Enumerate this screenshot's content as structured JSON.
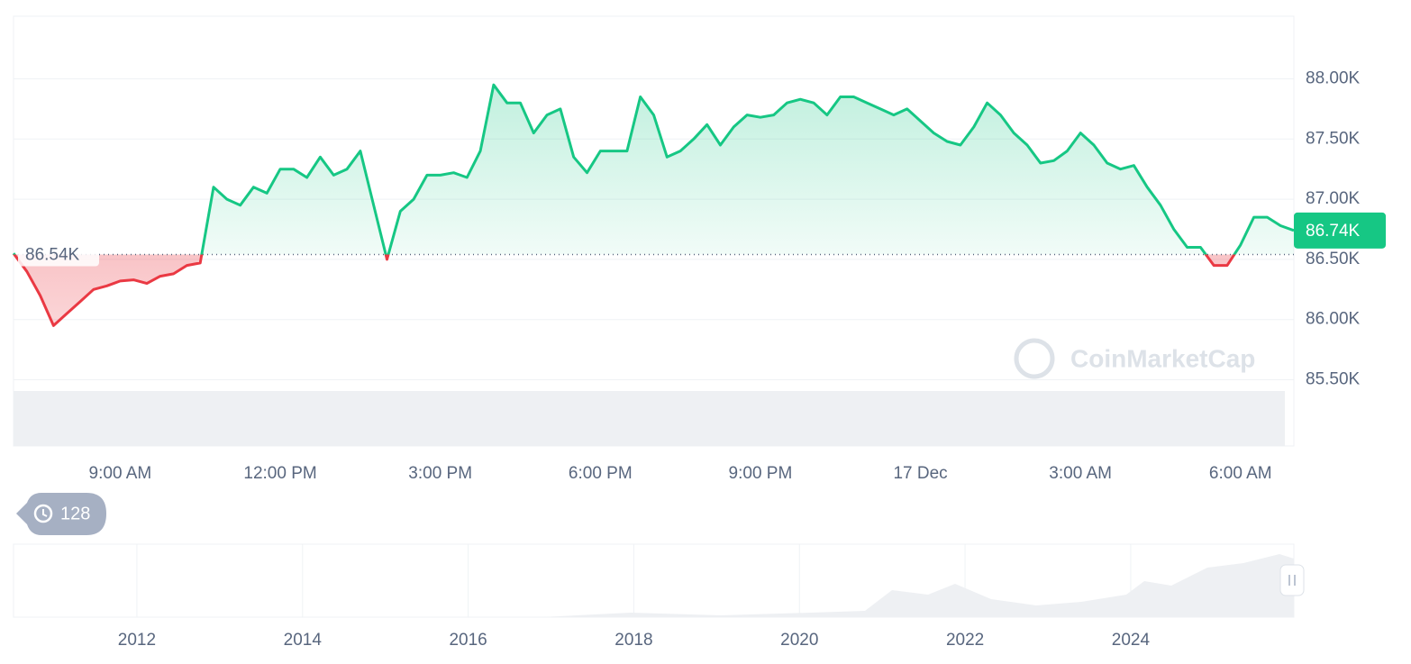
{
  "chart_data": {
    "type": "line",
    "categories": [
      null,
      null,
      null,
      null,
      null,
      null,
      null,
      null,
      "9:00 AM",
      null,
      null,
      null,
      null,
      null,
      null,
      null,
      null,
      null,
      null,
      null,
      "12:00 PM",
      null,
      null,
      null,
      null,
      null,
      null,
      null,
      null,
      null,
      null,
      null,
      "3:00 PM",
      null,
      null,
      null,
      null,
      null,
      null,
      null,
      null,
      null,
      null,
      null,
      "6:00 PM",
      null,
      null,
      null,
      null,
      null,
      null,
      null,
      null,
      null,
      null,
      null,
      "9:00 PM",
      null,
      null,
      null,
      null,
      null,
      null,
      null,
      null,
      null,
      null,
      null,
      "17 Dec",
      null,
      null,
      null,
      null,
      null,
      null,
      null,
      null,
      null,
      null,
      null,
      "3:00 AM",
      null,
      null,
      null,
      null,
      null,
      null,
      null,
      null,
      null,
      null,
      null,
      "6:00 AM",
      null,
      null,
      null,
      null
    ],
    "values": [
      86.55,
      86.4,
      86.2,
      85.95,
      86.05,
      86.15,
      86.25,
      86.28,
      86.32,
      86.33,
      86.3,
      86.36,
      86.38,
      86.45,
      86.47,
      87.1,
      87.0,
      86.95,
      87.1,
      87.05,
      87.25,
      87.25,
      87.18,
      87.35,
      87.2,
      87.25,
      87.4,
      86.95,
      86.5,
      86.9,
      87.0,
      87.2,
      87.2,
      87.22,
      87.18,
      87.4,
      87.95,
      87.8,
      87.8,
      87.55,
      87.7,
      87.75,
      87.35,
      87.22,
      87.4,
      87.4,
      87.4,
      87.85,
      87.7,
      87.35,
      87.4,
      87.5,
      87.62,
      87.45,
      87.6,
      87.7,
      87.68,
      87.7,
      87.8,
      87.83,
      87.8,
      87.7,
      87.85,
      87.85,
      87.8,
      87.75,
      87.7,
      87.75,
      87.65,
      87.55,
      87.48,
      87.45,
      87.6,
      87.8,
      87.7,
      87.55,
      87.45,
      87.3,
      87.32,
      87.4,
      87.55,
      87.45,
      87.3,
      87.25,
      87.28,
      87.1,
      86.95,
      86.75,
      86.6,
      86.6,
      86.45,
      86.45,
      86.62,
      86.85,
      86.85,
      86.78,
      86.74
    ],
    "up_color": "#16c784",
    "down_color": "#ea3943",
    "baseline": 86.54,
    "baseline_label": "86.54K",
    "current_label": "86.74K",
    "ylim": [
      84.95,
      88.52
    ],
    "yticks": [
      {
        "value": 85.5,
        "label": "85.50K"
      },
      {
        "value": 86,
        "label": "86.00K"
      },
      {
        "value": 86.5,
        "label": "86.50K"
      },
      {
        "value": 87,
        "label": "87.00K"
      },
      {
        "value": 87.5,
        "label": "87.50K"
      },
      {
        "value": 88,
        "label": "88.00K"
      }
    ],
    "grid": true,
    "watermark": "CoinMarketCap",
    "history_badge": "128",
    "navigator": {
      "xlim": [
        2010.51,
        2025.97
      ],
      "xticks": [
        2012,
        2014,
        2016,
        2018,
        2020,
        2022,
        2024
      ]
    }
  }
}
